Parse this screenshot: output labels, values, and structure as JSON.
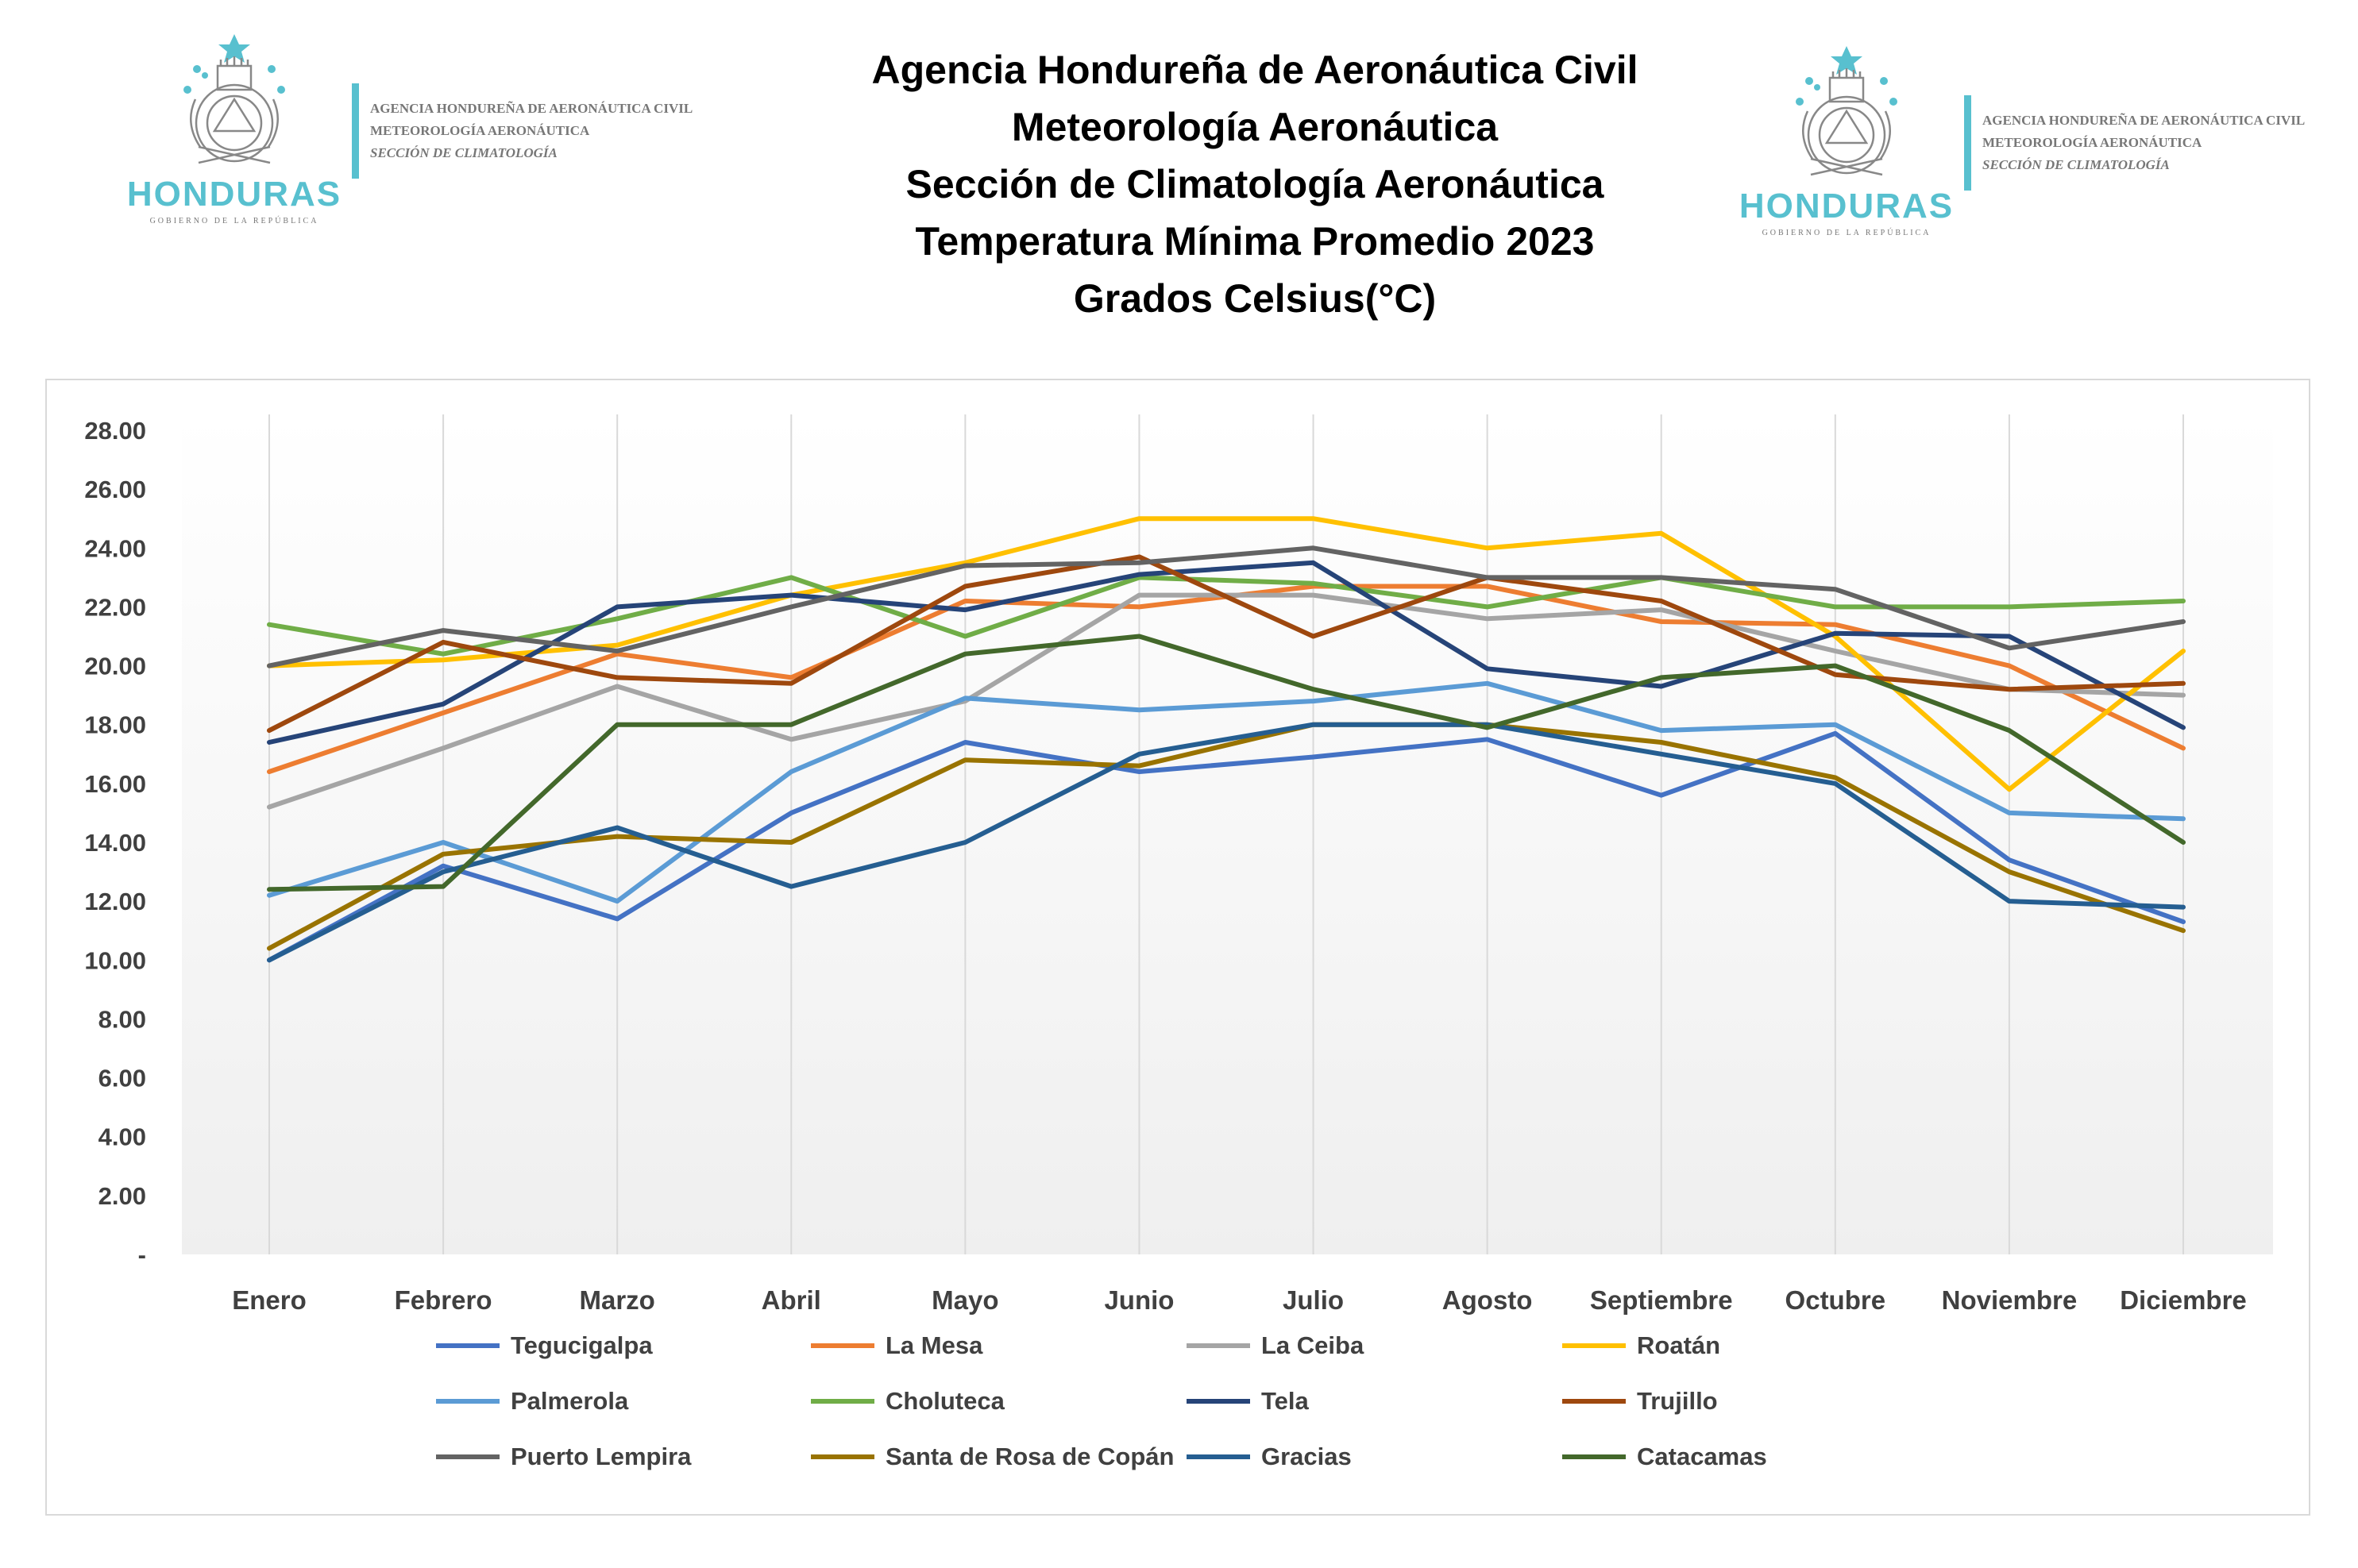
{
  "header": {
    "title_lines": [
      "Agencia Hondureña de Aeronáutica Civil",
      "Meteorología Aeronáutica",
      "Sección de Climatología Aeronáutica",
      "Temperatura Mínima Promedio 2023",
      "Grados Celsius(°C)"
    ]
  },
  "logo": {
    "honduras": "HONDURAS",
    "gobierno": "GOBIERNO DE LA REPÚBLICA",
    "agency_line1": "AGENCIA HONDUREÑA DE AERONÁUTICA CIVIL",
    "agency_line2": "METEOROLOGÍA AERONÁUTICA",
    "agency_line3": "SECCIÓN DE CLIMATOLOGÍA",
    "accent_color": "#58c0cf"
  },
  "chart_data": {
    "type": "line",
    "title": "Temperatura Mínima Promedio 2023",
    "xlabel": "",
    "ylabel": "",
    "ylim": [
      0,
      28
    ],
    "yticks": [
      "-",
      "2.00",
      "4.00",
      "6.00",
      "8.00",
      "10.00",
      "12.00",
      "14.00",
      "16.00",
      "18.00",
      "20.00",
      "22.00",
      "24.00",
      "26.00",
      "28.00"
    ],
    "grid": "vertical",
    "legend_position": "bottom",
    "categories": [
      "Enero",
      "Febrero",
      "Marzo",
      "Abril",
      "Mayo",
      "Junio",
      "Julio",
      "Agosto",
      "Septiembre",
      "Octubre",
      "Noviembre",
      "Diciembre"
    ],
    "series": [
      {
        "name": "Tegucigalpa",
        "color": "#4472c4",
        "values": [
          10.0,
          13.2,
          11.4,
          15.0,
          17.4,
          16.4,
          16.9,
          17.5,
          15.6,
          17.7,
          13.4,
          11.3
        ]
      },
      {
        "name": "La Mesa",
        "color": "#ed7d31",
        "values": [
          16.4,
          18.4,
          20.4,
          19.6,
          22.2,
          22.0,
          22.7,
          22.7,
          21.5,
          21.4,
          20.0,
          17.2
        ]
      },
      {
        "name": "La Ceiba",
        "color": "#a5a5a5",
        "values": [
          15.2,
          17.2,
          19.3,
          17.5,
          18.8,
          22.4,
          22.4,
          21.6,
          21.9,
          20.5,
          19.2,
          19.0
        ]
      },
      {
        "name": "Roatán",
        "color": "#ffc000",
        "values": [
          20.0,
          20.2,
          20.7,
          22.4,
          23.5,
          25.0,
          25.0,
          24.0,
          24.5,
          21.0,
          15.8,
          20.5
        ]
      },
      {
        "name": "Palmerola",
        "color": "#5b9bd5",
        "values": [
          12.2,
          14.0,
          12.0,
          16.4,
          18.9,
          18.5,
          18.8,
          19.4,
          17.8,
          18.0,
          15.0,
          14.8
        ]
      },
      {
        "name": "Choluteca",
        "color": "#70ad47",
        "values": [
          21.4,
          20.4,
          21.6,
          23.0,
          21.0,
          23.0,
          22.8,
          22.0,
          23.0,
          22.0,
          22.0,
          22.2
        ]
      },
      {
        "name": "Tela",
        "color": "#264478",
        "values": [
          17.4,
          18.7,
          22.0,
          22.4,
          21.9,
          23.1,
          23.5,
          19.9,
          19.3,
          21.1,
          21.0,
          17.9
        ]
      },
      {
        "name": "Trujillo",
        "color": "#9e480e",
        "values": [
          17.8,
          20.8,
          19.6,
          19.4,
          22.7,
          23.7,
          21.0,
          23.0,
          22.2,
          19.7,
          19.2,
          19.4
        ]
      },
      {
        "name": "Puerto Lempira",
        "color": "#636363",
        "values": [
          20.0,
          21.2,
          20.5,
          22.0,
          23.4,
          23.5,
          24.0,
          23.0,
          23.0,
          22.6,
          20.6,
          21.5
        ]
      },
      {
        "name": "Santa de Rosa de Copán",
        "color": "#997300",
        "values": [
          10.4,
          13.6,
          14.2,
          14.0,
          16.8,
          16.6,
          18.0,
          18.0,
          17.4,
          16.2,
          13.0,
          11.0
        ]
      },
      {
        "name": "Gracias",
        "color": "#255e91",
        "values": [
          10.0,
          13.0,
          14.5,
          12.5,
          14.0,
          17.0,
          18.0,
          18.0,
          17.0,
          16.0,
          12.0,
          11.8
        ]
      },
      {
        "name": "Catacamas",
        "color": "#43682b",
        "values": [
          12.4,
          12.5,
          18.0,
          18.0,
          20.4,
          21.0,
          19.2,
          17.9,
          19.6,
          20.0,
          17.8,
          14.0
        ]
      }
    ]
  }
}
